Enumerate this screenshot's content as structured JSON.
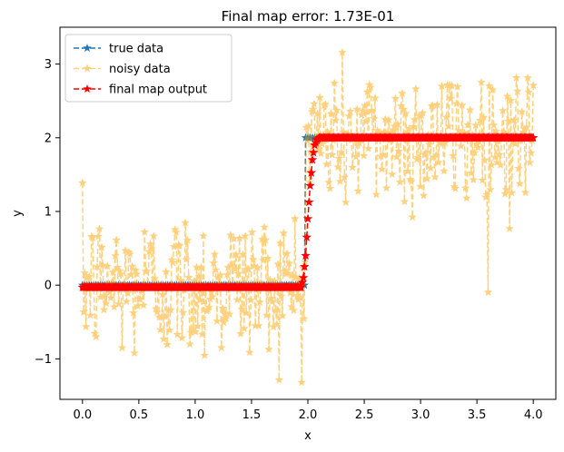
{
  "chart_data": {
    "type": "line",
    "title": "Final map error: 1.73E-01",
    "xlabel": "x",
    "ylabel": "y",
    "xlim": [
      -0.2,
      4.2
    ],
    "ylim": [
      -1.55,
      3.5
    ],
    "xticks": [
      0.0,
      0.5,
      1.0,
      1.5,
      2.0,
      2.5,
      3.0,
      3.5,
      4.0
    ],
    "xtick_labels": [
      "0.0",
      "0.5",
      "1.0",
      "1.5",
      "2.0",
      "2.5",
      "3.0",
      "3.5",
      "4.0"
    ],
    "yticks": [
      -1,
      0,
      1,
      2,
      3
    ],
    "ytick_labels": [
      "−1",
      "0",
      "1",
      "2",
      "3"
    ],
    "grid": false,
    "legend_position": "top-left",
    "series": [
      {
        "name": "true data",
        "color": "#1f77b4",
        "style": "dashed",
        "marker": "star",
        "points": [
          [
            0.0,
            0
          ],
          [
            1.97,
            0
          ],
          [
            1.98,
            2
          ],
          [
            4.0,
            2
          ]
        ]
      },
      {
        "name": "noisy data",
        "color": "#ffa500",
        "style": "dashed",
        "marker": "star",
        "opacity": 0.5,
        "noise": {
          "n_points": 400,
          "x_range": [
            0.0,
            4.0
          ],
          "step_at": 1.98,
          "low_level": 0,
          "high_level": 2,
          "spread_std": 0.5,
          "min_value": -1.32,
          "max_value": 3.28
        }
      },
      {
        "name": "final map output",
        "color": "#ff0000",
        "style": "dashed",
        "marker": "star",
        "points": [
          [
            0.0,
            -0.03
          ],
          [
            1.94,
            -0.03
          ],
          [
            1.96,
            0.1
          ],
          [
            1.98,
            0.4
          ],
          [
            2.0,
            0.9
          ],
          [
            2.02,
            1.35
          ],
          [
            2.04,
            1.7
          ],
          [
            2.06,
            1.9
          ],
          [
            2.08,
            1.97
          ],
          [
            2.1,
            2.0
          ],
          [
            4.0,
            2.0
          ]
        ]
      }
    ]
  }
}
